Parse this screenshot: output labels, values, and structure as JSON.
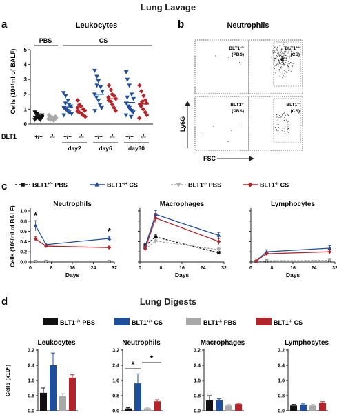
{
  "colors": {
    "wt_pbs": "#111111",
    "wt_cs": "#1f4e9c",
    "ko_pbs": "#a8a8a8",
    "ko_cs": "#b2242a"
  },
  "lavage_title": "Lung Lavage",
  "digests_title": "Lung Digests",
  "panel_labels": {
    "a": "a",
    "b": "b",
    "c": "c",
    "d": "d"
  },
  "panel_a": {
    "title": "Leukocytes",
    "ylabel": "Cells (10⁵/ml of BALF)",
    "yticks": [
      "0",
      "1",
      "2",
      "3",
      "4",
      "5"
    ],
    "row_label": "BLT1",
    "genotypes": [
      "+/+",
      "-/-",
      "+/+",
      "-/-",
      "+/+",
      "-/-",
      "+/+",
      "-/-"
    ],
    "group_pbs": "PBS",
    "group_cs": "CS",
    "days": [
      "day2",
      "day6",
      "day30"
    ]
  },
  "panel_b": {
    "title": "Neutrophils",
    "ylabel": "Ly6G",
    "xlabel": "FSC",
    "quadrants": [
      {
        "l1": "BLT1+/+",
        "l2": "(PBS)"
      },
      {
        "l1": "BLT1+/+",
        "l2": "(CS)"
      },
      {
        "l1": "BLT1-/-",
        "l2": "(PBS)"
      },
      {
        "l1": "BLT1-/-",
        "l2": "(CS)"
      }
    ]
  },
  "legend": [
    {
      "label": "BLT1+/+ PBS",
      "color": "#111111",
      "dash": true,
      "marker": "square"
    },
    {
      "label": "BLT1+/+ CS",
      "color": "#1f4e9c",
      "dash": false,
      "marker": "triangle-up"
    },
    {
      "label": "BLT1-/- PBS",
      "color": "#a8a8a8",
      "dash": true,
      "marker": "triangle-down"
    },
    {
      "label": "BLT1-/- CS",
      "color": "#b2242a",
      "dash": false,
      "marker": "diamond"
    }
  ],
  "panel_c": {
    "ylabel": "Cells (10⁵/ml of BALF)",
    "xlabel": "Days",
    "xticks": [
      "0",
      "8",
      "16",
      "24",
      "32"
    ],
    "yticks": [
      "0.0",
      "0.2",
      "0.4",
      "0.6",
      "0.8",
      "1.0"
    ],
    "star": "*",
    "subplots": [
      {
        "title": "Neutrophils",
        "stars": [
          2,
          30
        ]
      },
      {
        "title": "Macrophages",
        "stars": []
      },
      {
        "title": "Lymphocytes",
        "stars": []
      }
    ]
  },
  "panel_d": {
    "ylabel": "Cells (x10⁶)",
    "yticks": [
      "0.0",
      "0.8",
      "1.6",
      "2.4",
      "3.2"
    ],
    "subplots": [
      {
        "title": "Leukocytes"
      },
      {
        "title": "Neutrophils"
      },
      {
        "title": "Macrophages"
      },
      {
        "title": "Lymphocytes"
      }
    ],
    "star": "*"
  },
  "chart_data": [
    {
      "type": "scatter",
      "id": "a",
      "title": "Leukocytes",
      "ylabel": "Cells (10⁵/ml of BALF)",
      "ylim": [
        0,
        5
      ],
      "groups": [
        {
          "label": "PBS +/+",
          "mean": 0.5,
          "points": [
            0.8,
            0.7,
            0.6,
            0.5,
            0.5,
            0.45,
            0.4,
            0.35,
            0.3,
            0.6,
            0.3,
            0.55
          ]
        },
        {
          "label": "PBS -/-",
          "mean": 0.4,
          "points": [
            0.6,
            0.5,
            0.45,
            0.4,
            0.4,
            0.35,
            0.3,
            0.3,
            0.25,
            0.5,
            0.35,
            0.45
          ]
        },
        {
          "label": "day2 +/+",
          "mean": 1.15,
          "points": [
            2.1,
            1.9,
            1.6,
            1.3,
            1.2,
            1.1,
            1.0,
            0.9,
            0.8,
            0.7,
            0.6,
            1.4
          ]
        },
        {
          "label": "day2 -/-",
          "mean": 0.95,
          "points": [
            1.6,
            1.3,
            1.2,
            1.0,
            0.9,
            0.85,
            0.8,
            0.7,
            0.6,
            0.5,
            1.1
          ]
        },
        {
          "label": "day6 +/+",
          "mean": 2.0,
          "points": [
            3.6,
            3.2,
            2.9,
            2.5,
            2.2,
            2.0,
            1.8,
            1.6,
            1.3,
            1.1,
            0.9,
            2.6
          ]
        },
        {
          "label": "day6 -/-",
          "mean": 1.7,
          "points": [
            2.6,
            2.3,
            2.0,
            1.9,
            1.7,
            1.6,
            1.5,
            1.3,
            1.1,
            0.9,
            1.8
          ]
        },
        {
          "label": "day30 +/+",
          "mean": 1.45,
          "points": [
            3.5,
            3.0,
            2.6,
            2.0,
            1.7,
            1.4,
            1.2,
            1.0,
            0.9,
            0.8,
            0.6,
            1.8,
            1.1,
            0.5
          ]
        },
        {
          "label": "day30 -/-",
          "mean": 1.35,
          "points": [
            2.6,
            2.2,
            1.9,
            1.6,
            1.4,
            1.3,
            1.2,
            1.0,
            0.8,
            0.6,
            0.4,
            1.5
          ]
        }
      ]
    },
    {
      "type": "line",
      "id": "c",
      "xlabel": "Days",
      "ylabel": "Cells (10⁵/ml of BALF)",
      "xlim": [
        0,
        32
      ],
      "ylim": [
        0,
        1.0
      ],
      "subplots": [
        {
          "title": "Neutrophils",
          "series": [
            {
              "name": "BLT1+/+ PBS",
              "x": [
                2,
                6,
                30
              ],
              "y": [
                0.01,
                0.01,
                0.01
              ],
              "err": [
                0.005,
                0.005,
                0.005
              ]
            },
            {
              "name": "BLT1+/+ CS",
              "x": [
                2,
                6,
                30
              ],
              "y": [
                0.71,
                0.34,
                0.46
              ],
              "err": [
                0.1,
                0.03,
                0.04
              ]
            },
            {
              "name": "BLT1-/- PBS",
              "x": [
                2,
                6,
                30
              ],
              "y": [
                0.01,
                0.01,
                0.01
              ],
              "err": [
                0.005,
                0.005,
                0.005
              ]
            },
            {
              "name": "BLT1-/- CS",
              "x": [
                2,
                6,
                30
              ],
              "y": [
                0.45,
                0.31,
                0.28
              ],
              "err": [
                0.04,
                0.02,
                0.03
              ]
            }
          ]
        },
        {
          "title": "Macrophages",
          "series": [
            {
              "name": "BLT1+/+ PBS",
              "x": [
                2,
                6,
                30
              ],
              "y": [
                0.32,
                0.49,
                0.18
              ],
              "err": [
                0.04,
                0.05,
                0.03
              ]
            },
            {
              "name": "BLT1+/+ CS",
              "x": [
                2,
                6,
                30
              ],
              "y": [
                0.3,
                0.93,
                0.52
              ],
              "err": [
                0.05,
                0.08,
                0.06
              ]
            },
            {
              "name": "BLT1-/- PBS",
              "x": [
                2,
                6,
                30
              ],
              "y": [
                0.25,
                0.41,
                0.24
              ],
              "err": [
                0.04,
                0.05,
                0.04
              ]
            },
            {
              "name": "BLT1-/- CS",
              "x": [
                2,
                6,
                30
              ],
              "y": [
                0.26,
                0.86,
                0.4
              ],
              "err": [
                0.05,
                0.09,
                0.06
              ]
            }
          ]
        },
        {
          "title": "Lymphocytes",
          "series": [
            {
              "name": "BLT1+/+ PBS",
              "x": [
                2,
                6,
                30
              ],
              "y": [
                0.01,
                0.02,
                0.03
              ],
              "err": [
                0.005,
                0.005,
                0.005
              ]
            },
            {
              "name": "BLT1+/+ CS",
              "x": [
                2,
                6,
                30
              ],
              "y": [
                0.02,
                0.2,
                0.27
              ],
              "err": [
                0.01,
                0.04,
                0.05
              ]
            },
            {
              "name": "BLT1-/- PBS",
              "x": [
                2,
                6,
                30
              ],
              "y": [
                0.01,
                0.02,
                0.03
              ],
              "err": [
                0.005,
                0.005,
                0.005
              ]
            },
            {
              "name": "BLT1-/- CS",
              "x": [
                2,
                6,
                30
              ],
              "y": [
                0.02,
                0.16,
                0.2
              ],
              "err": [
                0.01,
                0.03,
                0.04
              ]
            }
          ]
        }
      ]
    },
    {
      "type": "bar",
      "id": "d",
      "ylabel": "Cells (x10⁶)",
      "ylim": [
        0,
        3.2
      ],
      "categories": [
        "BLT1+/+ PBS",
        "BLT1+/+ CS",
        "BLT1-/- PBS",
        "BLT1-/- CS"
      ],
      "subplots": [
        {
          "title": "Leukocytes",
          "values": [
            0.95,
            2.4,
            0.78,
            1.75
          ],
          "err": [
            0.25,
            0.65,
            0.12,
            0.15
          ]
        },
        {
          "title": "Neutrophils",
          "values": [
            0.12,
            1.45,
            0.12,
            0.5
          ],
          "err": [
            0.04,
            0.5,
            0.03,
            0.08
          ]
        },
        {
          "title": "Macrophages",
          "values": [
            0.55,
            0.55,
            0.28,
            0.36
          ],
          "err": [
            0.25,
            0.08,
            0.05,
            0.04
          ]
        },
        {
          "title": "Lymphocytes",
          "values": [
            0.28,
            0.33,
            0.28,
            0.42
          ],
          "err": [
            0.06,
            0.04,
            0.05,
            0.06
          ]
        }
      ]
    }
  ]
}
